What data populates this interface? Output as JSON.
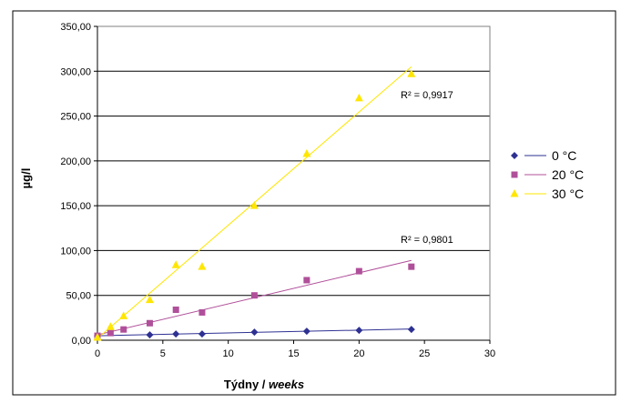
{
  "chart_data": {
    "type": "scatter",
    "title": "",
    "xlabel": "Týdny / ",
    "xlabel_italic": "weeks",
    "ylabel": "µg/l",
    "xlim": [
      0,
      30
    ],
    "ylim": [
      0,
      350
    ],
    "x_ticks": [
      "0",
      "5",
      "10",
      "15",
      "20",
      "25",
      "30"
    ],
    "y_ticks": [
      "0,00",
      "50,00",
      "100,00",
      "150,00",
      "200,00",
      "250,00",
      "300,00",
      "350,00"
    ],
    "grid": "horizontal",
    "legend_position": "right",
    "series": [
      {
        "name": "0 °C",
        "color": "#2e3192",
        "marker": "diamond",
        "x": [
          0,
          4,
          6,
          8,
          12,
          16,
          20,
          24
        ],
        "y": [
          5,
          6,
          7,
          7,
          9,
          10,
          11,
          12
        ],
        "trend": [
          [
            0,
            5
          ],
          [
            24,
            12.5
          ]
        ]
      },
      {
        "name": "20 °C",
        "color": "#b0509a",
        "marker": "square",
        "x": [
          0,
          1,
          2,
          4,
          6,
          8,
          12,
          16,
          20,
          24
        ],
        "y": [
          5,
          8,
          12,
          19,
          34,
          31,
          50,
          67,
          77,
          82
        ],
        "trend": [
          [
            0,
            6
          ],
          [
            24,
            89
          ]
        ],
        "r2_label": "R² = 0,9801"
      },
      {
        "name": "30 °C",
        "color": "#ffe600",
        "marker": "triangle",
        "x": [
          0,
          1,
          2,
          4,
          6,
          8,
          12,
          16,
          20,
          24
        ],
        "y": [
          3,
          15,
          27,
          45,
          84,
          82,
          150,
          208,
          270,
          297
        ],
        "trend": [
          [
            0,
            2
          ],
          [
            24,
            305
          ]
        ],
        "r2_label": "R² = 0,9917"
      }
    ]
  }
}
